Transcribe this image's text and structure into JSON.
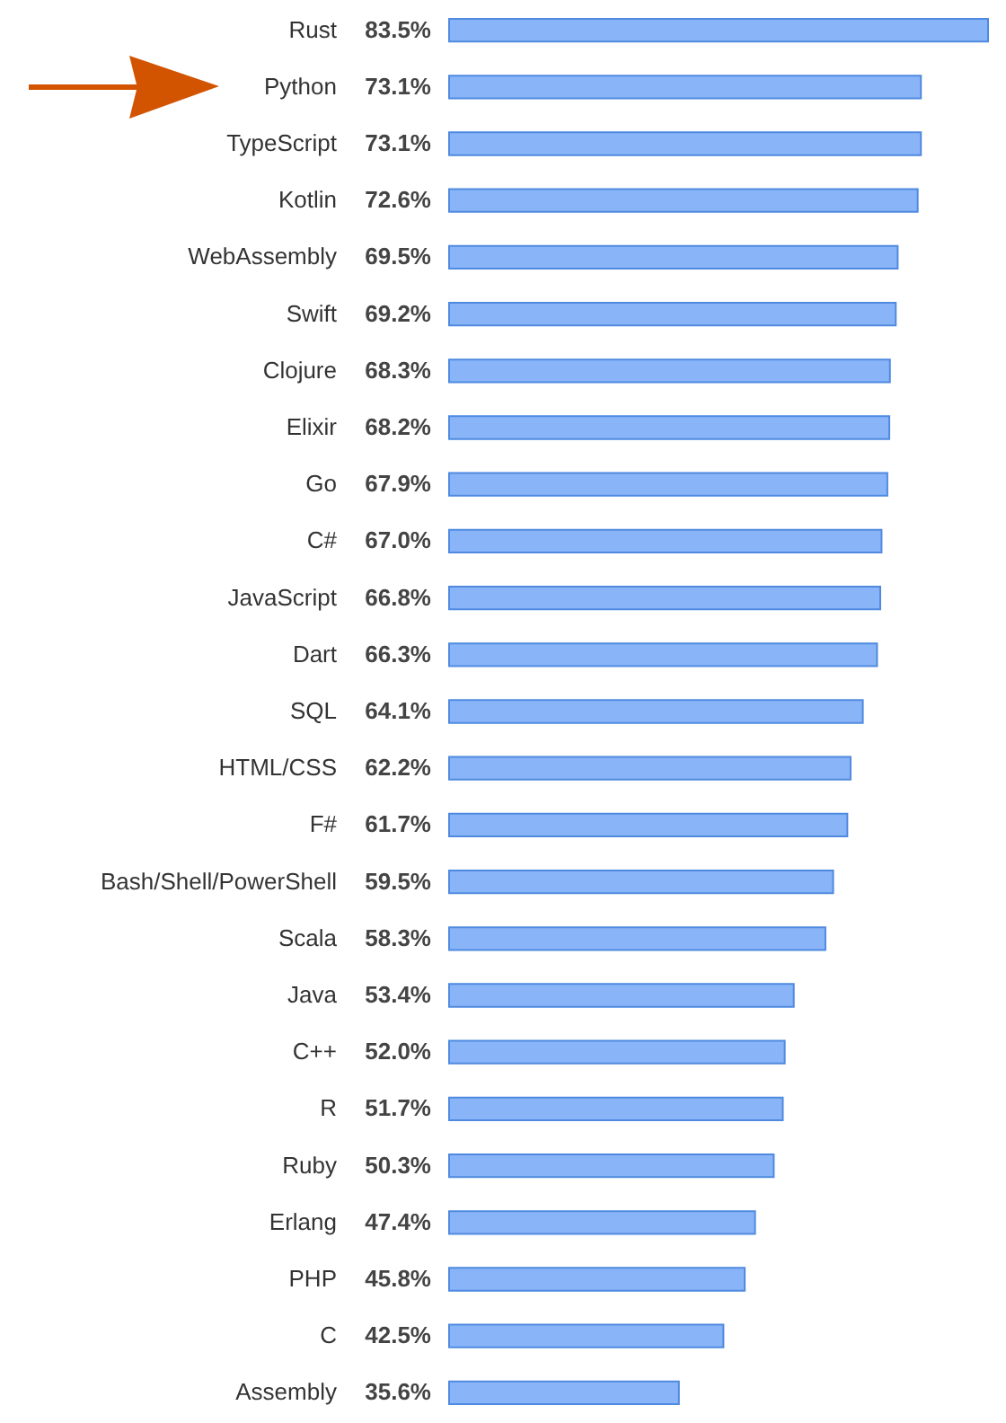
{
  "chart_data": {
    "type": "bar",
    "orientation": "horizontal",
    "categories": [
      "Rust",
      "Python",
      "TypeScript",
      "Kotlin",
      "WebAssembly",
      "Swift",
      "Clojure",
      "Elixir",
      "Go",
      "C#",
      "JavaScript",
      "Dart",
      "SQL",
      "HTML/CSS",
      "F#",
      "Bash/Shell/PowerShell",
      "Scala",
      "Java",
      "C++",
      "R",
      "Ruby",
      "Erlang",
      "PHP",
      "C",
      "Assembly"
    ],
    "values": [
      83.5,
      73.1,
      73.1,
      72.6,
      69.5,
      69.2,
      68.3,
      68.2,
      67.9,
      67.0,
      66.8,
      66.3,
      64.1,
      62.2,
      61.7,
      59.5,
      58.3,
      53.4,
      52.0,
      51.7,
      50.3,
      47.4,
      45.8,
      42.5,
      35.6
    ],
    "value_labels": [
      "83.5%",
      "73.1%",
      "73.1%",
      "72.6%",
      "69.5%",
      "69.2%",
      "68.3%",
      "68.2%",
      "67.9%",
      "67.0%",
      "66.8%",
      "66.3%",
      "64.1%",
      "62.2%",
      "61.7%",
      "59.5%",
      "58.3%",
      "53.4%",
      "52.0%",
      "51.7%",
      "50.3%",
      "47.4%",
      "45.8%",
      "42.5%",
      "35.6%"
    ],
    "color": "#8ab4f8"
  }
}
